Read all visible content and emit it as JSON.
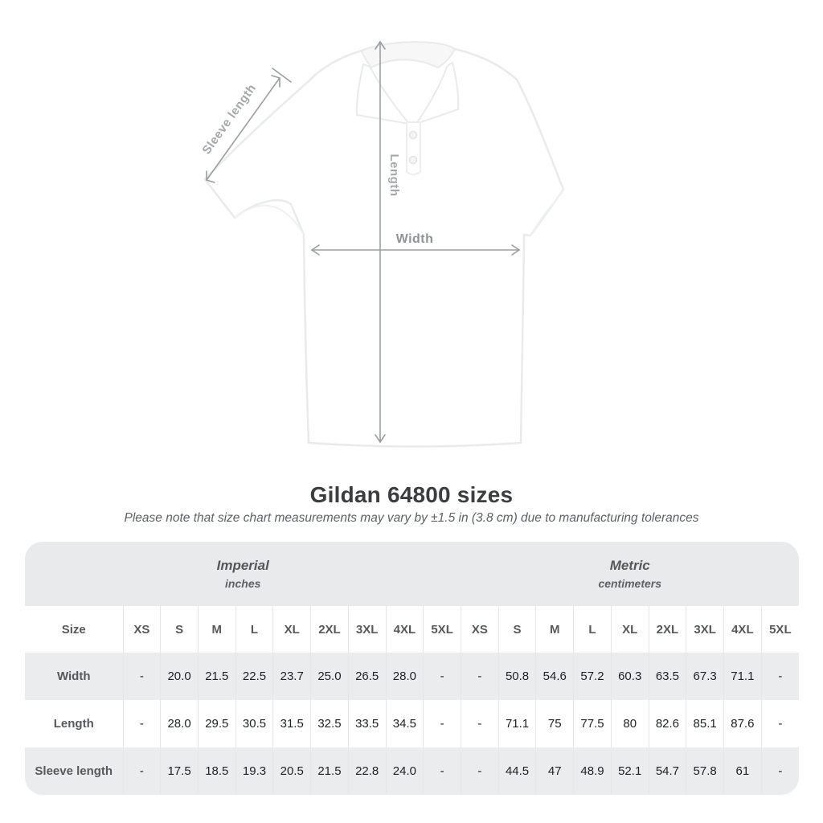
{
  "figure": {
    "labels": {
      "sleeve": "Sleeve length",
      "length": "Length",
      "width": "Width"
    },
    "arrow_color": "#9b9ea0",
    "label_color": "#a5a8aa"
  },
  "title": "Gildan 64800 sizes",
  "note": "Please note that size chart measurements may vary by ±1.5 in (3.8 cm) due to manufacturing tolerances",
  "table": {
    "unit_groups": [
      {
        "name": "Imperial",
        "unit": "inches"
      },
      {
        "name": "Metric",
        "unit": "centimeters"
      }
    ],
    "size_label": "Size",
    "sizes": [
      "XS",
      "S",
      "M",
      "L",
      "XL",
      "2XL",
      "3XL",
      "4XL",
      "5XL"
    ],
    "rows": [
      {
        "label": "Width",
        "imperial": [
          "-",
          "20.0",
          "21.5",
          "22.5",
          "23.7",
          "25.0",
          "26.5",
          "28.0",
          "-"
        ],
        "metric": [
          "-",
          "50.8",
          "54.6",
          "57.2",
          "60.3",
          "63.5",
          "67.3",
          "71.1",
          "-"
        ]
      },
      {
        "label": "Length",
        "imperial": [
          "-",
          "28.0",
          "29.5",
          "30.5",
          "31.5",
          "32.5",
          "33.5",
          "34.5",
          "-"
        ],
        "metric": [
          "-",
          "71.1",
          "75",
          "77.5",
          "80",
          "82.6",
          "85.1",
          "87.6",
          "-"
        ]
      },
      {
        "label": "Sleeve length",
        "imperial": [
          "-",
          "17.5",
          "18.5",
          "19.3",
          "20.5",
          "21.5",
          "22.8",
          "24.0",
          "-"
        ],
        "metric": [
          "-",
          "44.5",
          "47",
          "48.9",
          "52.1",
          "54.7",
          "57.8",
          "61",
          "-"
        ]
      }
    ],
    "colors": {
      "band": "#e9eaeb",
      "stripe": "#ebecee"
    }
  }
}
